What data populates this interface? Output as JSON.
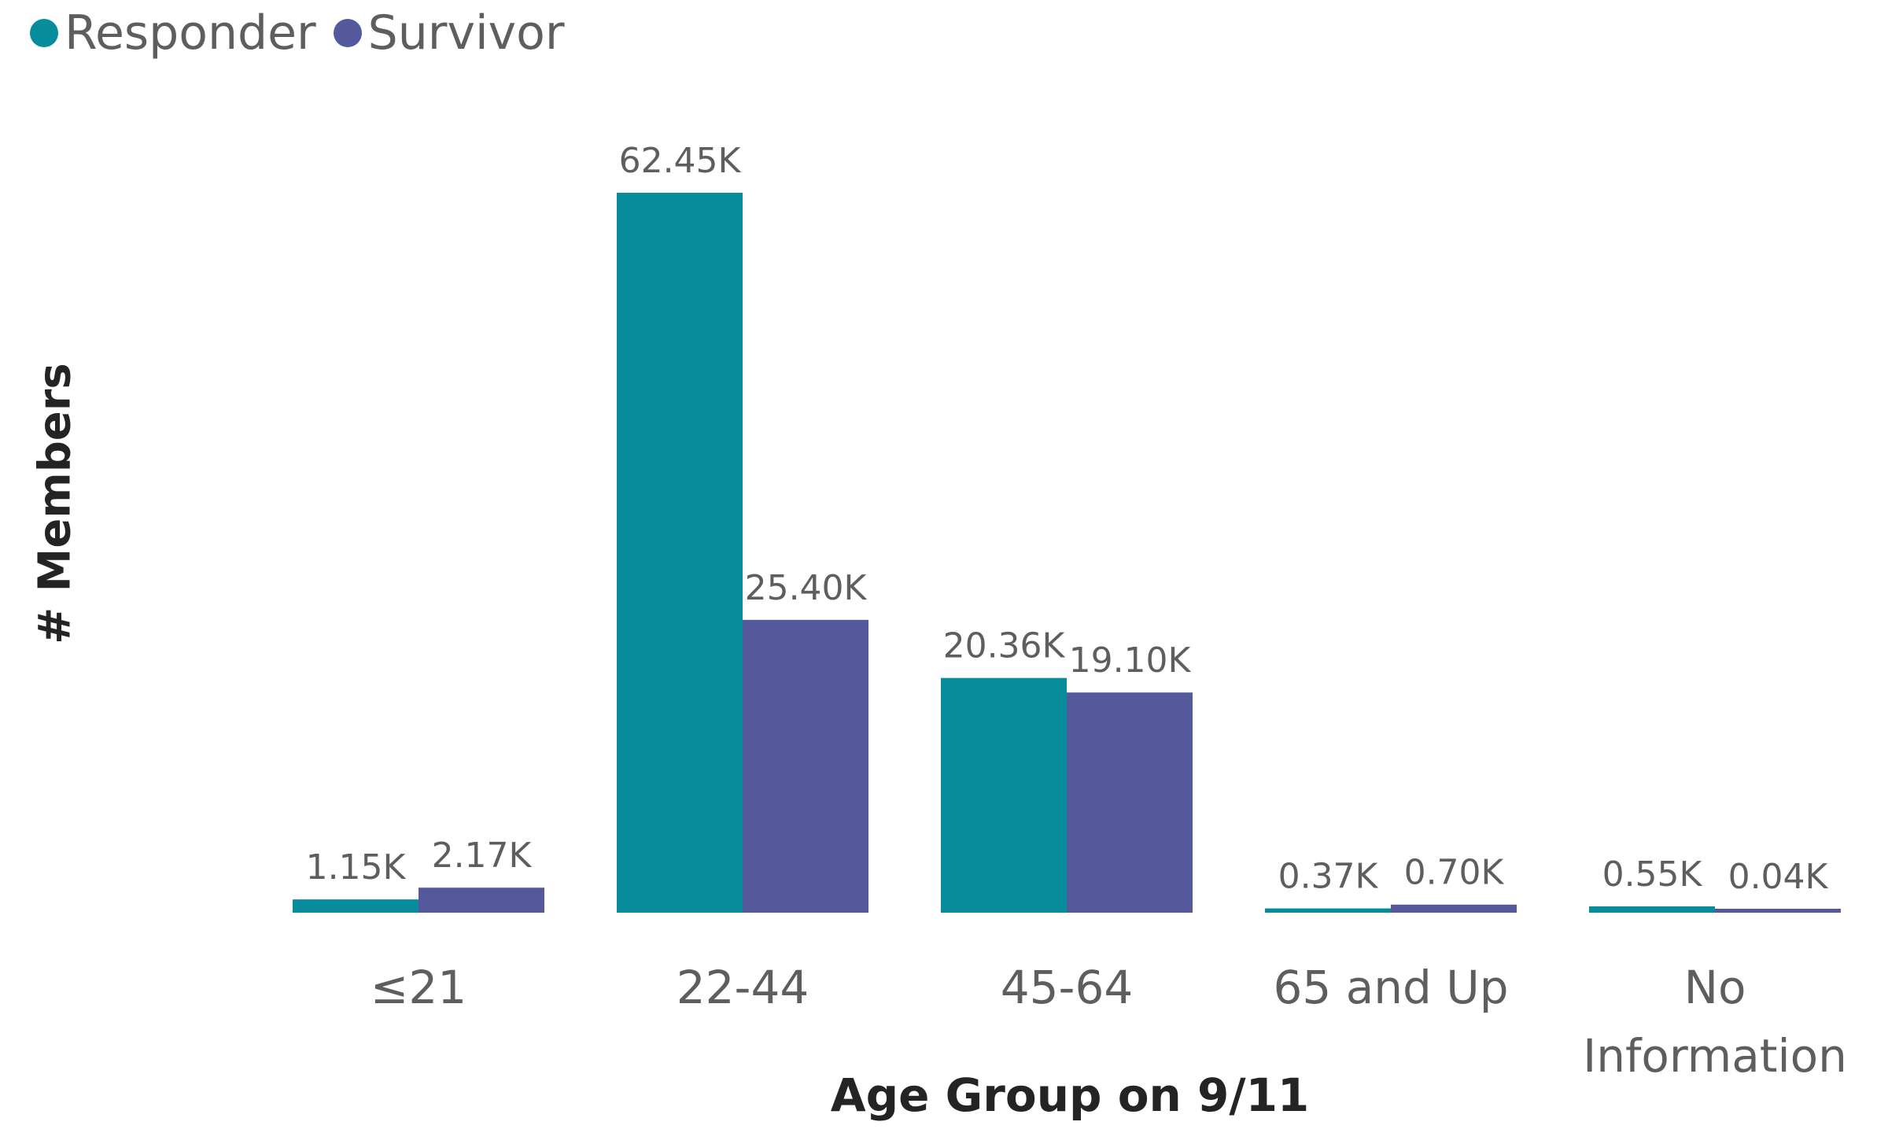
{
  "chart_data": {
    "type": "bar",
    "xlabel": "Age Group on 9/11",
    "ylabel": "# Members",
    "categories": [
      "≤21",
      "22-44",
      "45-64",
      "65 and Up",
      "No Information"
    ],
    "series": [
      {
        "name": "Responder",
        "color": "#078c9c",
        "values": [
          1.15,
          62.45,
          20.36,
          0.37,
          0.55
        ],
        "labels": [
          "1.15K",
          "62.45K",
          "20.36K",
          "0.37K",
          "0.55K"
        ]
      },
      {
        "name": "Survivor",
        "color": "#55599c",
        "values": [
          2.17,
          25.4,
          19.1,
          0.7,
          0.04
        ],
        "labels": [
          "2.17K",
          "25.40K",
          "19.10K",
          "0.70K",
          "0.04K"
        ]
      }
    ],
    "value_unit": "K",
    "ylim": [
      0,
      62.45
    ],
    "grid": false,
    "legend_position": "top-left"
  }
}
